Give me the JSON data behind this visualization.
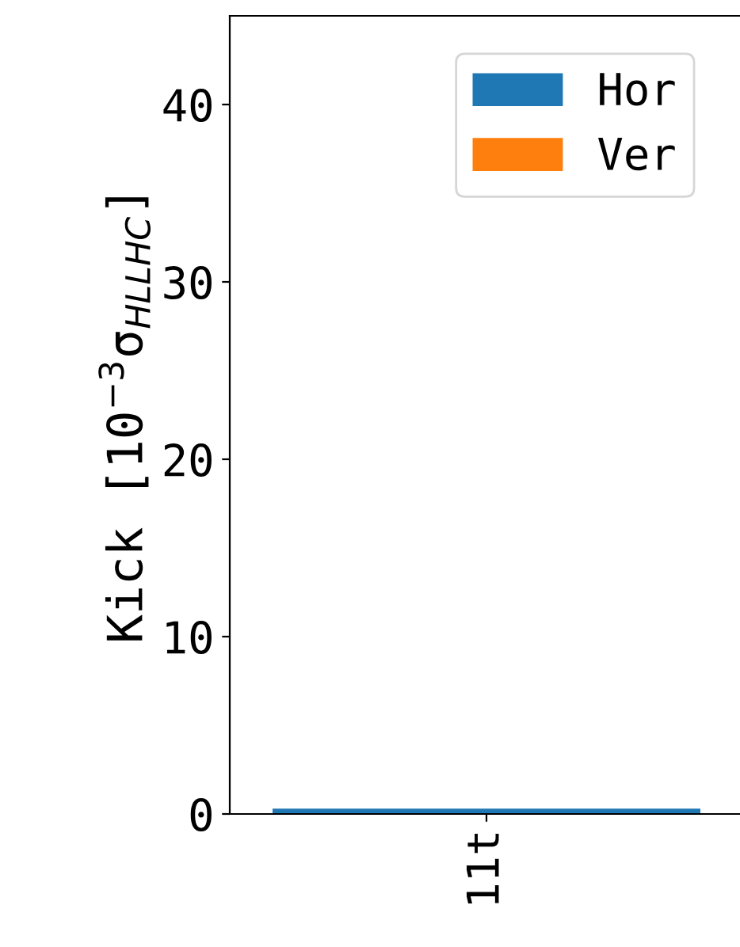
{
  "chart_data": {
    "type": "bar",
    "ylabel": "Kick [10$^{−3}$σ$_{HLLHC}$]",
    "categories": [
      "11t"
    ],
    "stacked": true,
    "series": [
      {
        "name": "Hor",
        "color": "#1f77b4",
        "values": [
          0.3
        ]
      },
      {
        "name": "Ver",
        "color": "#ff7f0e",
        "values": [
          0
        ]
      }
    ],
    "ylim": [
      0,
      45
    ],
    "yticks": [
      0,
      10,
      20,
      30,
      40
    ],
    "legend": "top right",
    "grid": false
  }
}
